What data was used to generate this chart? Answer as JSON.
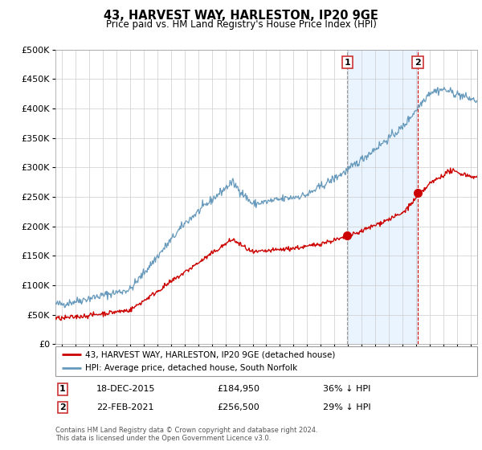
{
  "title": "43, HARVEST WAY, HARLESTON, IP20 9GE",
  "subtitle": "Price paid vs. HM Land Registry's House Price Index (HPI)",
  "ylabel_ticks": [
    "£0",
    "£50K",
    "£100K",
    "£150K",
    "£200K",
    "£250K",
    "£300K",
    "£350K",
    "£400K",
    "£450K",
    "£500K"
  ],
  "ytick_values": [
    0,
    50000,
    100000,
    150000,
    200000,
    250000,
    300000,
    350000,
    400000,
    450000,
    500000
  ],
  "ylim": [
    0,
    500000
  ],
  "xlim_start": 1994.5,
  "xlim_end": 2025.5,
  "transaction1_x": 2015.96,
  "transaction1_y": 184950,
  "transaction1_label": "1",
  "transaction2_x": 2021.13,
  "transaction2_y": 256500,
  "transaction2_label": "2",
  "red_line_color": "#cc0000",
  "blue_line_color": "#6699bb",
  "dashed_line_color_1": "#999999",
  "dashed_line_color_2": "#cc0000",
  "marker_color": "#cc0000",
  "highlight_color": "#ddeeff",
  "legend_label_red": "43, HARVEST WAY, HARLESTON, IP20 9GE (detached house)",
  "legend_label_blue": "HPI: Average price, detached house, South Norfolk",
  "table_row1": [
    "1",
    "18-DEC-2015",
    "£184,950",
    "36% ↓ HPI"
  ],
  "table_row2": [
    "2",
    "22-FEB-2021",
    "£256,500",
    "29% ↓ HPI"
  ],
  "footer": "Contains HM Land Registry data © Crown copyright and database right 2024.\nThis data is licensed under the Open Government Licence v3.0.",
  "xtick_years": [
    1995,
    1996,
    1997,
    1998,
    1999,
    2000,
    2001,
    2002,
    2003,
    2004,
    2005,
    2006,
    2007,
    2008,
    2009,
    2010,
    2011,
    2012,
    2013,
    2014,
    2015,
    2016,
    2017,
    2018,
    2019,
    2020,
    2021,
    2022,
    2023,
    2024,
    2025
  ]
}
